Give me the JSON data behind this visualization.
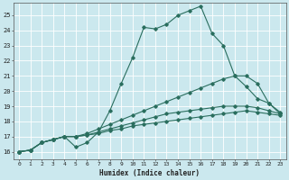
{
  "xlabel": "Humidex (Indice chaleur)",
  "bg_color": "#cbe8ee",
  "line_color": "#2a6e5e",
  "grid_color": "#ffffff",
  "xlim": [
    -0.5,
    23.5
  ],
  "ylim": [
    15.5,
    25.8
  ],
  "yticks": [
    16,
    17,
    18,
    19,
    20,
    21,
    22,
    23,
    24,
    25
  ],
  "xticks": [
    0,
    1,
    2,
    3,
    4,
    5,
    6,
    7,
    8,
    9,
    10,
    11,
    12,
    13,
    14,
    15,
    16,
    17,
    18,
    19,
    20,
    21,
    22,
    23
  ],
  "lines": [
    {
      "x": [
        0,
        1,
        2,
        3,
        4,
        5,
        6,
        7,
        8,
        9,
        10,
        11,
        12,
        13,
        14,
        15,
        16,
        17,
        18,
        19,
        20,
        21,
        22,
        23
      ],
      "y": [
        16,
        16.1,
        16.6,
        16.8,
        17.0,
        16.3,
        16.6,
        17.3,
        18.7,
        20.5,
        22.2,
        24.2,
        24.1,
        24.4,
        25.0,
        25.3,
        25.6,
        23.8,
        23.0,
        21.0,
        21.0,
        20.5,
        19.2,
        18.5
      ]
    },
    {
      "x": [
        0,
        1,
        2,
        3,
        4,
        5,
        6,
        7,
        8,
        9,
        10,
        11,
        12,
        13,
        14,
        15,
        16,
        17,
        18,
        19,
        20,
        21,
        22,
        23
      ],
      "y": [
        16,
        16.1,
        16.6,
        16.8,
        17.0,
        17.0,
        17.2,
        17.5,
        17.8,
        18.1,
        18.4,
        18.7,
        19.0,
        19.3,
        19.6,
        19.9,
        20.2,
        20.5,
        20.8,
        21.0,
        20.3,
        19.5,
        19.2,
        18.6
      ]
    },
    {
      "x": [
        0,
        1,
        2,
        3,
        4,
        5,
        6,
        7,
        8,
        9,
        10,
        11,
        12,
        13,
        14,
        15,
        16,
        17,
        18,
        19,
        20,
        21,
        22,
        23
      ],
      "y": [
        16,
        16.1,
        16.6,
        16.8,
        17.0,
        17.0,
        17.1,
        17.3,
        17.5,
        17.7,
        17.9,
        18.1,
        18.3,
        18.5,
        18.6,
        18.7,
        18.8,
        18.9,
        19.0,
        19.0,
        19.0,
        18.9,
        18.7,
        18.5
      ]
    },
    {
      "x": [
        0,
        1,
        2,
        3,
        4,
        5,
        6,
        7,
        8,
        9,
        10,
        11,
        12,
        13,
        14,
        15,
        16,
        17,
        18,
        19,
        20,
        21,
        22,
        23
      ],
      "y": [
        16,
        16.1,
        16.6,
        16.8,
        17.0,
        17.0,
        17.1,
        17.2,
        17.4,
        17.5,
        17.7,
        17.8,
        17.9,
        18.0,
        18.1,
        18.2,
        18.3,
        18.4,
        18.5,
        18.6,
        18.7,
        18.6,
        18.5,
        18.4
      ]
    }
  ]
}
